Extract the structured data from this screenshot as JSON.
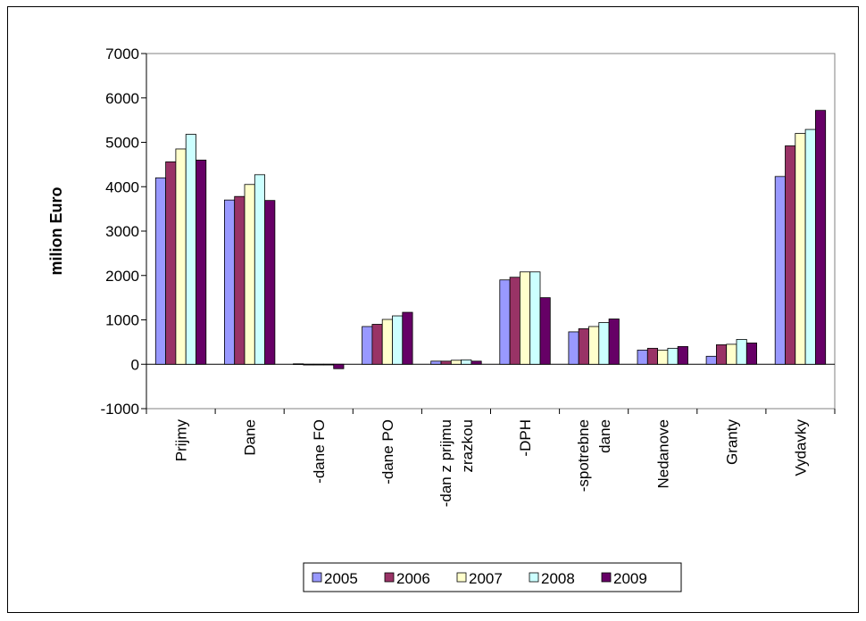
{
  "chart_data": {
    "type": "bar",
    "ylabel": "milion Euro",
    "ylim": [
      -1000,
      7000
    ],
    "yticks": [
      -1000,
      0,
      1000,
      2000,
      3000,
      4000,
      5000,
      6000,
      7000
    ],
    "categories": [
      [
        "Prijmy"
      ],
      [
        "Dane"
      ],
      [
        "-dane FO"
      ],
      [
        "-dane PO"
      ],
      [
        "-dan z prijmu",
        "zrazkou"
      ],
      [
        "-DPH"
      ],
      [
        "-spotrebne",
        "dane"
      ],
      [
        "Nedanove"
      ],
      [
        "Granty"
      ],
      [
        "Vydavky"
      ]
    ],
    "series": [
      {
        "name": "2005",
        "color": "#9999ff",
        "values": [
          4200,
          3700,
          10,
          850,
          70,
          1900,
          730,
          320,
          180,
          4230
        ]
      },
      {
        "name": "2006",
        "color": "#993366",
        "values": [
          4560,
          3780,
          0,
          900,
          70,
          1960,
          800,
          360,
          440,
          4920
        ]
      },
      {
        "name": "2007",
        "color": "#ffffcc",
        "values": [
          4850,
          4050,
          0,
          1010,
          90,
          2080,
          850,
          320,
          450,
          5200
        ]
      },
      {
        "name": "2008",
        "color": "#ccffff",
        "values": [
          5180,
          4270,
          0,
          1090,
          100,
          2080,
          940,
          360,
          560,
          5290
        ]
      },
      {
        "name": "2009",
        "color": "#660066",
        "values": [
          4600,
          3690,
          -100,
          1170,
          70,
          1500,
          1020,
          400,
          480,
          5720
        ]
      }
    ],
    "legend_position": "bottom",
    "grid": false,
    "plot_background": "#ffffff"
  }
}
